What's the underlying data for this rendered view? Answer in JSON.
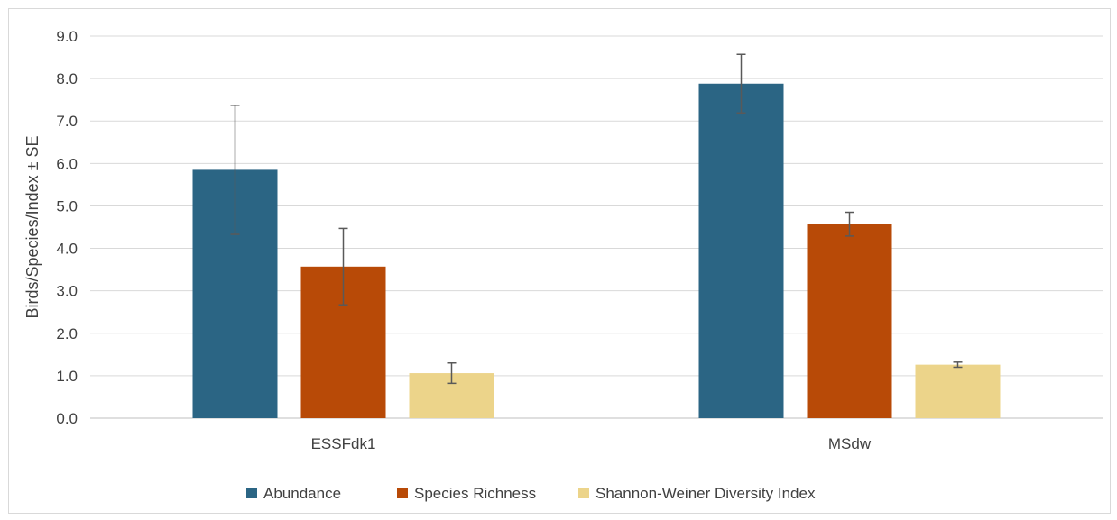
{
  "chart_data": {
    "type": "bar",
    "title": "",
    "xlabel": "",
    "ylabel": "Birds/Species/Index ± SE",
    "ylim": [
      0,
      9
    ],
    "yticks": [
      "0.0",
      "1.0",
      "2.0",
      "3.0",
      "4.0",
      "5.0",
      "6.0",
      "7.0",
      "8.0",
      "9.0"
    ],
    "categories": [
      "ESSFdk1",
      "MSdw"
    ],
    "grid": true,
    "legend_position": "bottom",
    "series": [
      {
        "name": "Abundance",
        "color": "#2b6584",
        "values": [
          5.85,
          7.88
        ],
        "error": [
          1.52,
          0.69
        ]
      },
      {
        "name": "Species Richness",
        "color": "#b84a07",
        "values": [
          3.57,
          4.57
        ],
        "error": [
          0.9,
          0.28
        ]
      },
      {
        "name": "Shannon-Weiner Diversity Index",
        "color": "#ecd48a",
        "values": [
          1.06,
          1.26
        ],
        "error": [
          0.24,
          0.06
        ]
      }
    ]
  }
}
